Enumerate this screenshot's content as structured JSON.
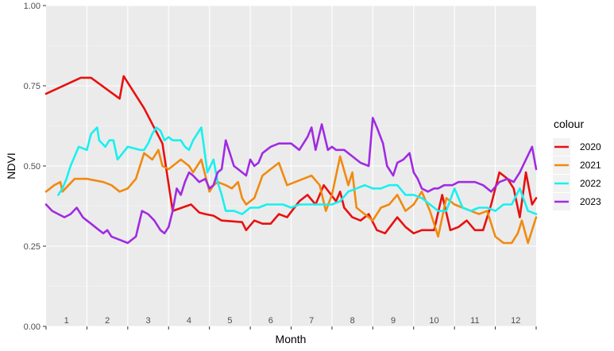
{
  "chart_data": {
    "type": "line",
    "xlabel": "Month",
    "ylabel": "NDVI",
    "ylim": [
      0,
      1
    ],
    "y_ticks": [
      "0.00",
      "0.25",
      "0.50",
      "0.75",
      "1.00"
    ],
    "y_tick_values": [
      0,
      0.25,
      0.5,
      0.75,
      1
    ],
    "month_labels": [
      "1",
      "2",
      "3",
      "4",
      "5",
      "6",
      "7",
      "8",
      "9",
      "10",
      "11",
      "12"
    ],
    "legend_title": "colour",
    "legend_position": "right",
    "grid": true,
    "series": [
      {
        "name": "2020",
        "color": "#e81010",
        "x": [
          0.0,
          0.85,
          1.1,
          1.8,
          1.9,
          2.4,
          2.85,
          3.1,
          3.55,
          3.75,
          3.9,
          4.1,
          4.3,
          4.8,
          4.9,
          5.1,
          5.3,
          5.5,
          5.7,
          5.9,
          6.2,
          6.4,
          6.6,
          6.8,
          7.1,
          7.2,
          7.3,
          7.5,
          7.7,
          7.9,
          8.1,
          8.3,
          8.6,
          8.8,
          9.0,
          9.2,
          9.5,
          9.7,
          9.9,
          10.1,
          10.3,
          10.5,
          10.7,
          10.9,
          11.1,
          11.3,
          11.45,
          11.6,
          11.75,
          11.9,
          12.0
        ],
        "y": [
          0.725,
          0.775,
          0.775,
          0.71,
          0.78,
          0.68,
          0.57,
          0.36,
          0.38,
          0.355,
          0.35,
          0.345,
          0.33,
          0.325,
          0.3,
          0.33,
          0.32,
          0.32,
          0.35,
          0.34,
          0.39,
          0.41,
          0.38,
          0.44,
          0.39,
          0.42,
          0.37,
          0.34,
          0.33,
          0.35,
          0.3,
          0.29,
          0.34,
          0.31,
          0.29,
          0.3,
          0.3,
          0.41,
          0.3,
          0.31,
          0.33,
          0.3,
          0.3,
          0.38,
          0.48,
          0.46,
          0.43,
          0.34,
          0.48,
          0.38,
          0.4
        ]
      },
      {
        "name": "2021",
        "color": "#f08a10",
        "x": [
          0.0,
          0.2,
          0.35,
          0.4,
          0.55,
          0.7,
          1.0,
          1.4,
          1.6,
          1.8,
          2.0,
          2.2,
          2.4,
          2.6,
          2.75,
          2.85,
          3.0,
          3.1,
          3.3,
          3.5,
          3.6,
          3.8,
          4.0,
          4.1,
          4.2,
          4.4,
          4.55,
          4.7,
          4.8,
          4.9,
          5.1,
          5.3,
          5.5,
          5.7,
          5.9,
          6.1,
          6.3,
          6.5,
          6.7,
          6.85,
          7.0,
          7.2,
          7.4,
          7.5,
          7.6,
          7.8,
          8.0,
          8.2,
          8.4,
          8.6,
          8.8,
          9.0,
          9.2,
          9.4,
          9.6,
          9.8,
          10.0,
          10.2,
          10.4,
          10.6,
          10.8,
          11.0,
          11.2,
          11.4,
          11.55,
          11.65,
          11.8,
          12.0
        ],
        "y": [
          0.42,
          0.44,
          0.45,
          0.42,
          0.44,
          0.46,
          0.46,
          0.45,
          0.44,
          0.42,
          0.43,
          0.46,
          0.54,
          0.52,
          0.55,
          0.5,
          0.49,
          0.5,
          0.52,
          0.5,
          0.48,
          0.52,
          0.42,
          0.44,
          0.45,
          0.44,
          0.43,
          0.45,
          0.4,
          0.38,
          0.4,
          0.47,
          0.49,
          0.51,
          0.44,
          0.45,
          0.46,
          0.47,
          0.44,
          0.36,
          0.41,
          0.53,
          0.44,
          0.48,
          0.37,
          0.35,
          0.33,
          0.37,
          0.38,
          0.41,
          0.36,
          0.38,
          0.42,
          0.36,
          0.28,
          0.4,
          0.38,
          0.37,
          0.36,
          0.35,
          0.36,
          0.28,
          0.26,
          0.26,
          0.29,
          0.33,
          0.26,
          0.34
        ]
      },
      {
        "name": "2022",
        "color": "#19f0f0",
        "x": [
          0.3,
          0.4,
          0.5,
          0.6,
          0.8,
          1.0,
          1.1,
          1.25,
          1.3,
          1.45,
          1.55,
          1.65,
          1.75,
          2.0,
          2.3,
          2.4,
          2.5,
          2.6,
          2.7,
          2.8,
          2.9,
          3.0,
          3.1,
          3.2,
          3.3,
          3.4,
          3.5,
          3.6,
          3.8,
          3.95,
          4.1,
          4.2,
          4.3,
          4.4,
          4.6,
          4.8,
          5.0,
          5.2,
          5.4,
          5.6,
          5.8,
          6.0,
          6.2,
          6.4,
          6.6,
          6.8,
          7.0,
          7.2,
          7.4,
          7.6,
          7.8,
          8.0,
          8.2,
          8.4,
          8.6,
          8.8,
          9.0,
          9.2,
          9.4,
          9.5,
          9.6,
          9.8,
          10.0,
          10.2,
          10.4,
          10.6,
          10.8,
          11.0,
          11.2,
          11.4,
          11.6,
          11.8,
          12.0
        ],
        "y": [
          0.41,
          0.43,
          0.46,
          0.5,
          0.56,
          0.55,
          0.6,
          0.62,
          0.58,
          0.56,
          0.58,
          0.58,
          0.52,
          0.56,
          0.55,
          0.55,
          0.57,
          0.6,
          0.62,
          0.61,
          0.58,
          0.59,
          0.58,
          0.58,
          0.58,
          0.56,
          0.55,
          0.58,
          0.62,
          0.48,
          0.52,
          0.45,
          0.41,
          0.36,
          0.36,
          0.35,
          0.37,
          0.37,
          0.38,
          0.38,
          0.38,
          0.37,
          0.38,
          0.38,
          0.38,
          0.38,
          0.38,
          0.39,
          0.42,
          0.43,
          0.44,
          0.43,
          0.43,
          0.44,
          0.44,
          0.41,
          0.41,
          0.4,
          0.38,
          0.37,
          0.36,
          0.36,
          0.43,
          0.37,
          0.36,
          0.37,
          0.37,
          0.36,
          0.38,
          0.38,
          0.43,
          0.36,
          0.35
        ]
      },
      {
        "name": "2023",
        "color": "#a02be2",
        "x": [
          0.0,
          0.15,
          0.3,
          0.45,
          0.6,
          0.75,
          0.9,
          1.0,
          1.1,
          1.2,
          1.3,
          1.4,
          1.5,
          1.6,
          1.8,
          2.0,
          2.1,
          2.2,
          2.35,
          2.5,
          2.65,
          2.8,
          2.9,
          3.0,
          3.1,
          3.2,
          3.3,
          3.4,
          3.5,
          3.6,
          3.75,
          3.9,
          4.0,
          4.1,
          4.2,
          4.3,
          4.4,
          4.6,
          4.7,
          4.9,
          5.0,
          5.1,
          5.2,
          5.3,
          5.5,
          5.7,
          6.0,
          6.2,
          6.4,
          6.5,
          6.6,
          6.75,
          6.9,
          7.0,
          7.1,
          7.3,
          7.5,
          7.7,
          7.9,
          8.0,
          8.1,
          8.25,
          8.35,
          8.5,
          8.6,
          8.75,
          8.9,
          9.0,
          9.1,
          9.2,
          9.35,
          9.5,
          9.6,
          9.75,
          9.85,
          9.95,
          10.1,
          10.3,
          10.5,
          10.7,
          10.9,
          11.1,
          11.3,
          11.45,
          11.6,
          11.75,
          11.9,
          12.0
        ],
        "y": [
          0.38,
          0.36,
          0.35,
          0.34,
          0.35,
          0.37,
          0.34,
          0.33,
          0.32,
          0.31,
          0.3,
          0.29,
          0.3,
          0.28,
          0.27,
          0.26,
          0.27,
          0.28,
          0.36,
          0.35,
          0.33,
          0.3,
          0.29,
          0.31,
          0.36,
          0.43,
          0.41,
          0.45,
          0.48,
          0.47,
          0.45,
          0.46,
          0.43,
          0.44,
          0.48,
          0.49,
          0.58,
          0.5,
          0.49,
          0.47,
          0.52,
          0.5,
          0.51,
          0.54,
          0.56,
          0.57,
          0.57,
          0.55,
          0.59,
          0.62,
          0.55,
          0.63,
          0.55,
          0.56,
          0.55,
          0.55,
          0.53,
          0.51,
          0.5,
          0.65,
          0.62,
          0.57,
          0.5,
          0.47,
          0.51,
          0.52,
          0.54,
          0.48,
          0.46,
          0.43,
          0.42,
          0.43,
          0.43,
          0.44,
          0.44,
          0.44,
          0.45,
          0.45,
          0.45,
          0.44,
          0.42,
          0.45,
          0.46,
          0.45,
          0.48,
          0.52,
          0.56,
          0.49
        ]
      }
    ]
  }
}
